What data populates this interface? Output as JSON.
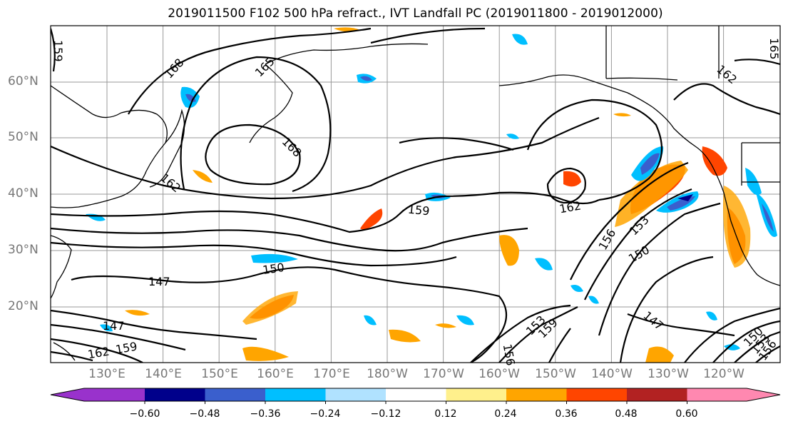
{
  "title": "2019011500 F102 500 hPa refract., IVT Landfall PC (2019011800 - 2019012000)",
  "latitude_labels": [
    "60°N",
    "50°N",
    "40°N",
    "30°N",
    "20°N"
  ],
  "longitude_labels": [
    "130°E",
    "140°E",
    "150°E",
    "160°E",
    "170°E",
    "180°W",
    "170°W",
    "160°W",
    "150°W",
    "140°W",
    "130°W",
    "120°W"
  ],
  "contour_labels": [
    "168",
    "165",
    "168",
    "162",
    "159",
    "162",
    "156",
    "153",
    "150",
    "150",
    "147",
    "147",
    "153",
    "159",
    "156",
    "162",
    "159",
    "162",
    "147",
    "150",
    "153",
    "156",
    "165",
    "159"
  ],
  "colorbar": {
    "tick_labels": [
      "−0.60",
      "−0.48",
      "−0.36",
      "−0.24",
      "−0.12",
      "0.12",
      "0.24",
      "0.36",
      "0.48",
      "0.60"
    ],
    "colors": [
      "#9932cc",
      "#00008b",
      "#3a5fcd",
      "#00bfff",
      "#b0e2ff",
      "#ffffff",
      "#fff08c",
      "#ffa500",
      "#ff4500",
      "#b22222",
      "#ff88b0"
    ]
  }
}
